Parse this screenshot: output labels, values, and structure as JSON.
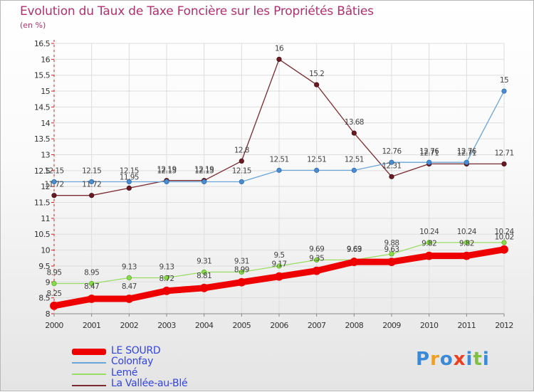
{
  "header": {
    "title": "Evolution du Taux de Taxe Foncière sur les Propriétés Bâties",
    "unit": "(en %)"
  },
  "colors": {
    "title": "#b03070",
    "LE SOURD": "#ee0000",
    "Colonfay": "#6aa5d8",
    "Lemé": "#99dd66",
    "La Vallée-au-Blé": "#7a2a30",
    "grid": "#dddddd",
    "axis": "#cc2222"
  },
  "chart_data": {
    "type": "line",
    "title": "Evolution du Taux de Taxe Foncière sur les Propriétés Bâties",
    "ylabel": "(en %)",
    "xlabel": "",
    "ylim": [
      8,
      16.5
    ],
    "yticks": [
      "8",
      "8.5",
      "9",
      "9.5",
      "10",
      "10.5",
      "11",
      "11.5",
      "12",
      "12.5",
      "13",
      "13.5",
      "14",
      "14.5",
      "15",
      "15.5",
      "16",
      "16.5"
    ],
    "categories": [
      "2000",
      "2001",
      "2002",
      "2003",
      "2004",
      "2005",
      "2006",
      "2007",
      "2008",
      "2009",
      "2010",
      "2011",
      "2012"
    ],
    "grid": true,
    "legend_position": "bottom-left",
    "series": [
      {
        "name": "La Vallée-au-Blé",
        "values": [
          11.72,
          11.72,
          11.95,
          12.19,
          12.19,
          12.8,
          16,
          15.2,
          13.68,
          12.31,
          12.71,
          12.71,
          12.71
        ],
        "labels": [
          "11.72",
          "11.72",
          "11.95",
          "12.19",
          "12.19",
          "12.8",
          "16",
          "15.2",
          "13.68",
          "12.31",
          "12.71",
          "12.71",
          "12.71"
        ]
      },
      {
        "name": "Colonfay",
        "values": [
          12.15,
          12.15,
          12.15,
          12.15,
          12.15,
          12.15,
          12.51,
          12.51,
          12.51,
          12.76,
          12.76,
          12.76,
          15
        ],
        "labels": [
          "12.15",
          "12.15",
          "12.15",
          "12.15",
          "12.15",
          "12.15",
          "12.51",
          "12.51",
          "12.51",
          "12.76",
          "12.76",
          "12.76",
          "15"
        ]
      },
      {
        "name": "Lemé",
        "values": [
          8.95,
          8.95,
          9.13,
          9.13,
          9.31,
          9.31,
          9.5,
          9.69,
          9.69,
          9.88,
          10.24,
          10.24,
          10.24
        ],
        "labels": [
          "8.95",
          "8.95",
          "9.13",
          "9.13",
          "9.31",
          "9.31",
          "9.5",
          "9.69",
          "9.69",
          "9.88",
          "10.24",
          "10.24",
          "10.24"
        ]
      },
      {
        "name": "LE SOURD",
        "values": [
          8.25,
          8.47,
          8.47,
          8.72,
          8.81,
          8.99,
          9.17,
          9.35,
          9.63,
          9.63,
          9.82,
          9.82,
          10.02
        ],
        "labels": [
          "8.25",
          "8.47",
          "8.47",
          "8.72",
          "8.81",
          "8.99",
          "9.17",
          "9.35",
          "9.63",
          "9.63",
          "9.82",
          "9.82",
          "10.02"
        ]
      }
    ]
  },
  "legend": {
    "items": [
      {
        "name": "LE SOURD"
      },
      {
        "name": "Colonfay"
      },
      {
        "name": "Lemé"
      },
      {
        "name": "La Vallée-au-Blé"
      }
    ]
  },
  "logo": {
    "text": "Proxiti"
  }
}
